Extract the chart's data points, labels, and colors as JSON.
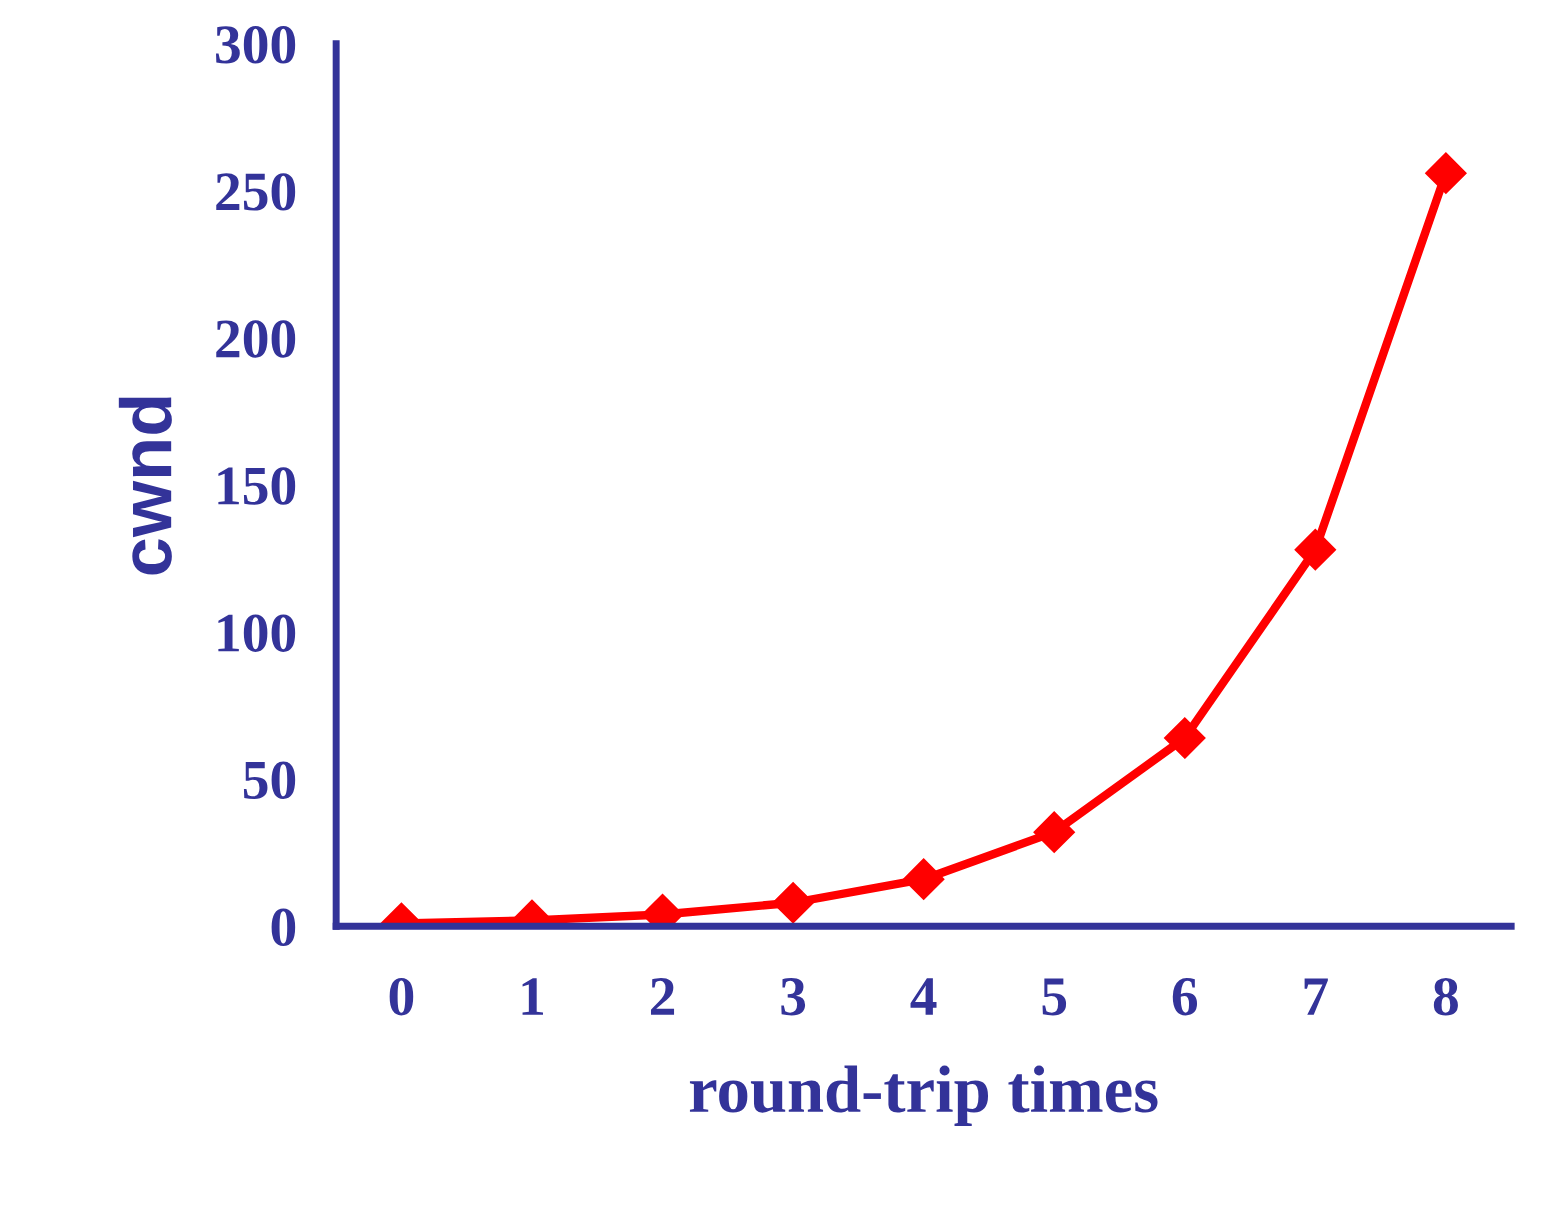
{
  "chart_data": {
    "type": "line",
    "xlabel": "round-trip times",
    "ylabel": "cwnd",
    "categories": [
      "0",
      "1",
      "2",
      "3",
      "4",
      "5",
      "6",
      "7",
      "8"
    ],
    "series": [
      {
        "color": "#ff0000",
        "values": [
          1,
          2,
          4,
          8,
          16,
          32,
          64,
          128,
          256
        ]
      }
    ],
    "ylim": [
      0,
      300
    ],
    "yticks": [
      0,
      50,
      100,
      150,
      200,
      250,
      300
    ],
    "marker": "diamond",
    "line_style": "solid",
    "grid": false,
    "legend": false
  }
}
